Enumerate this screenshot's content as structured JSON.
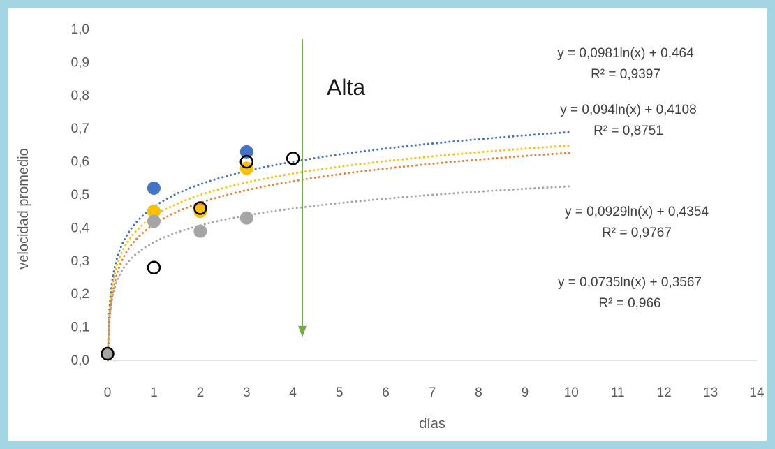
{
  "chart_data": {
    "type": "scatter",
    "xlabel": "días",
    "ylabel": "velocidad promedio",
    "xlim": [
      0,
      14
    ],
    "ylim": [
      0,
      1
    ],
    "x_ticks": [
      "0",
      "1",
      "2",
      "3",
      "4",
      "5",
      "6",
      "7",
      "8",
      "9",
      "10",
      "11",
      "12",
      "13",
      "14"
    ],
    "y_ticks": [
      "0,0",
      "0,1",
      "0,2",
      "0,3",
      "0,4",
      "0,5",
      "0,6",
      "0,7",
      "0,8",
      "0,9",
      "1,0"
    ],
    "grid": false,
    "annotation": {
      "text": "Alta",
      "arrow_x": 4.2,
      "arrow_y_from": 0.97,
      "arrow_y_to": 0.07,
      "arrow_color": "#70ad47"
    },
    "series": [
      {
        "color": "#4472c4",
        "marker": "filled",
        "x": [
          0,
          1,
          3
        ],
        "y": [
          0.02,
          0.52,
          0.63
        ],
        "trend": {
          "a": 0.0981,
          "b": 0.464,
          "x_end": 10
        },
        "equation": "y = 0,0981ln(x) + 0,464",
        "r2": "R² = 0,9397"
      },
      {
        "color": "#ed7d31",
        "marker": "filled",
        "x": [
          0,
          1,
          2,
          3
        ],
        "y": [
          0.02,
          0.45,
          0.46,
          0.58
        ],
        "trend": {
          "a": 0.094,
          "b": 0.4108,
          "x_end": 10
        },
        "equation": "y = 0,094ln(x) + 0,4108",
        "r2": "R² = 0,8751"
      },
      {
        "color": "#ffc000",
        "marker": "filled",
        "x": [
          0,
          1,
          2,
          3
        ],
        "y": [
          0.02,
          0.45,
          0.45,
          0.58
        ],
        "trend": {
          "a": 0.0929,
          "b": 0.4354,
          "x_end": 10
        },
        "equation": "y = 0,0929ln(x) + 0,4354",
        "r2": "R² = 0,9767"
      },
      {
        "color": "#a5a5a5",
        "marker": "filled",
        "x": [
          0,
          1,
          2,
          3
        ],
        "y": [
          0.02,
          0.42,
          0.39,
          0.43
        ],
        "trend": {
          "a": 0.0735,
          "b": 0.3567,
          "x_end": 10
        },
        "equation": "y = 0,0735ln(x) + 0,3567",
        "r2": "R² = 0,966"
      },
      {
        "color": "#000000",
        "marker": "open",
        "x": [
          0,
          1,
          2,
          3,
          4
        ],
        "y": [
          0.02,
          0.28,
          0.46,
          0.6,
          0.61
        ]
      }
    ]
  }
}
